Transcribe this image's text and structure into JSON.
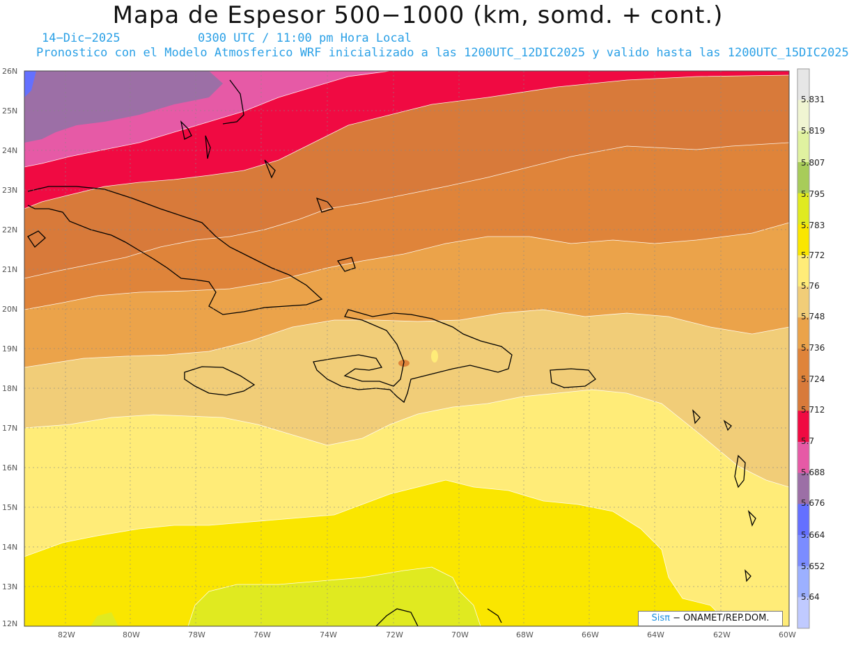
{
  "header": {
    "title": "Mapa de Espesor 500−1000 (km, somd. + cont.)",
    "date": "14−Dic−2025",
    "time": "0300 UTC / 11:00 pm Hora Local",
    "forecast_note": "Pronostico con el Modelo Atmosferico WRF inicializado a las 1200UTC_12DIC2025 y valido hasta las  1200UTC_15DIC2025"
  },
  "map": {
    "lat_labels": [
      "26N",
      "25N",
      "24N",
      "23N",
      "22N",
      "21N",
      "20N",
      "19N",
      "18N",
      "17N",
      "16N",
      "15N",
      "14N",
      "13N",
      "12N"
    ],
    "lon_labels": [
      "82W",
      "80W",
      "78W",
      "76W",
      "74W",
      "72W",
      "70W",
      "68W",
      "66W",
      "64W",
      "62W",
      "60W"
    ],
    "lat_range": [
      12,
      26
    ],
    "lon_range": [
      -83.2,
      -60
    ],
    "grid": true,
    "coastline_color": "#000000"
  },
  "colorbar": {
    "labels": [
      "5.831",
      "5.819",
      "5.807",
      "5.795",
      "5.783",
      "5.772",
      "5.76",
      "5.748",
      "5.736",
      "5.724",
      "5.712",
      "5.7",
      "5.688",
      "5.676",
      "5.664",
      "5.652",
      "5.64"
    ],
    "colors": [
      "#e6e6e6",
      "#f0f5d2",
      "#e0f2a0",
      "#a8cc5a",
      "#e0ea20",
      "#fae600",
      "#ffec78",
      "#f1cd78",
      "#eba34a",
      "#df843a",
      "#d87a3a",
      "#f00a42",
      "#e65aa6",
      "#9c6fa6",
      "#6470ff",
      "#7b8cff",
      "#9cb0ff",
      "#c0caff"
    ]
  },
  "credit": {
    "brand": "Sisπ",
    "org": " − ONAMET/REP.DOM."
  }
}
